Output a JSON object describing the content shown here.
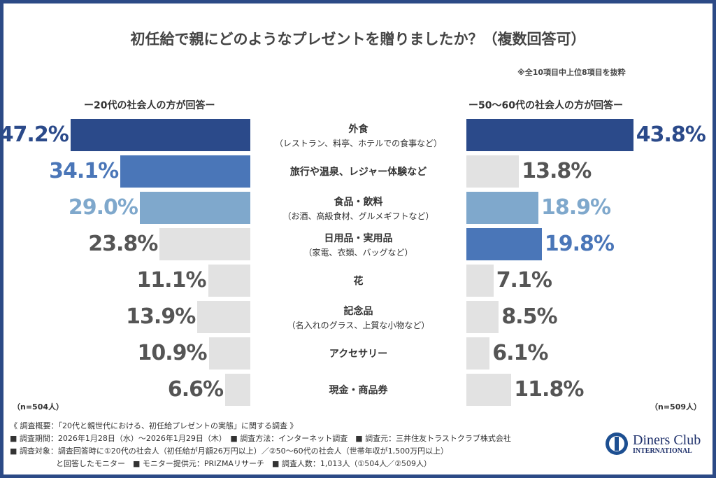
{
  "chart_data": {
    "type": "bar",
    "orientation": "horizontal-butterfly",
    "title": "初任給で親にどのようなプレゼントを贈りましたか？（複数回答可）",
    "note": "※全10項目中上位8項目を抜粋",
    "categories": [
      {
        "label": "外食",
        "sub": "（レストラン、料亭、ホテルでの食事など）"
      },
      {
        "label": "旅行や温泉、レジャー体験など",
        "sub": ""
      },
      {
        "label": "食品・飲料",
        "sub": "（お酒、高級食材、グルメギフトなど）"
      },
      {
        "label": "日用品・実用品",
        "sub": "（家電、衣類、バッグなど）"
      },
      {
        "label": "花",
        "sub": ""
      },
      {
        "label": "記念品",
        "sub": "（名入れのグラス、上質な小物など）"
      },
      {
        "label": "アクセサリー",
        "sub": ""
      },
      {
        "label": "現金・商品券",
        "sub": ""
      }
    ],
    "series": [
      {
        "name": "ー20代の社会人の方が回答ー",
        "n": "（n=504人）",
        "values": [
          47.2,
          34.1,
          29.0,
          23.8,
          11.1,
          13.9,
          10.9,
          6.6
        ],
        "labels": [
          "47.2%",
          "34.1%",
          "29.0%",
          "23.8%",
          "11.1%",
          "13.9%",
          "10.9%",
          "6.6%"
        ],
        "colors": [
          "#2b4a8a",
          "#4a76b8",
          "#7fa8cc",
          "#e2e2e2",
          "#e2e2e2",
          "#e2e2e2",
          "#e2e2e2",
          "#e2e2e2"
        ]
      },
      {
        "name": "ー50～60代の社会人の方が回答ー",
        "n": "（n=509人）",
        "values": [
          43.8,
          13.8,
          18.9,
          19.8,
          7.1,
          8.5,
          6.1,
          11.8
        ],
        "labels": [
          "43.8%",
          "13.8%",
          "18.9%",
          "19.8%",
          "7.1%",
          "8.5%",
          "6.1%",
          "11.8%"
        ],
        "colors": [
          "#2b4a8a",
          "#e2e2e2",
          "#7fa8cc",
          "#4a76b8",
          "#e2e2e2",
          "#e2e2e2",
          "#e2e2e2",
          "#e2e2e2"
        ]
      }
    ],
    "grid": false
  },
  "footer": {
    "lines": [
      "《 調査概要：「20代と親世代における、初任給プレゼントの実態」に関する調査 》",
      "■ 調査期間：2026年1月28日（水）～2026年1月29日（木）　■ 調査方法：インターネット調査　■ 調査元：三井住友トラストクラブ株式会社",
      "■ 調査対象：調査回答時に①20代の社会人（初任給が月額26万円以上）／②50～60代の社会人（世帯年収が1,500万円以上）",
      "　　　　　　と回答したモニター　■ モニター提供元：PRIZMAリサーチ　■ 調査人数：1,013人（①504人／②509人）"
    ]
  },
  "logo": {
    "line1": "Diners Club",
    "line2": "INTERNATIONAL"
  },
  "colors": {
    "frame": "#2c4a86",
    "gray_text": "#555555"
  }
}
